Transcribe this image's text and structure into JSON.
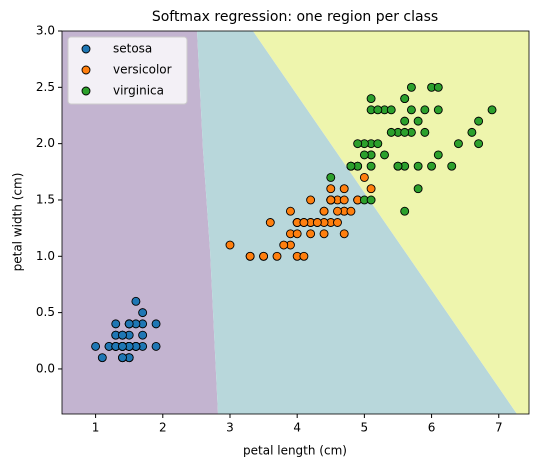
{
  "chart_data": {
    "type": "scatter",
    "title": "Softmax regression: one region per class",
    "x_label": "petal length (cm)",
    "y_label": "petal width (cm)",
    "xlim": [
      0.5,
      7.45
    ],
    "ylim": [
      -0.4,
      3.0
    ],
    "xticks": [
      1,
      2,
      3,
      4,
      5,
      6,
      7
    ],
    "yticks": [
      {
        "value": 0,
        "label": "0.0"
      },
      0.5,
      {
        "value": 1,
        "label": "1.0"
      },
      1.5,
      {
        "value": 2,
        "label": "2.0"
      },
      2.5,
      {
        "value": 3,
        "label": "3.0"
      }
    ],
    "legend": "upper left",
    "series": [
      {
        "name": "setosa",
        "color": "#1f77b4",
        "x": [
          1.4,
          1.4,
          1.3,
          1.5,
          1.4,
          1.7,
          1.4,
          1.5,
          1.4,
          1.5,
          1.5,
          1.6,
          1.4,
          1.1,
          1.2,
          1.5,
          1.3,
          1.4,
          1.7,
          1.5,
          1.7,
          1.5,
          1.0,
          1.7,
          1.9,
          1.6,
          1.6,
          1.5,
          1.4,
          1.6,
          1.6,
          1.5,
          1.5,
          1.4,
          1.5,
          1.2,
          1.3,
          1.4,
          1.3,
          1.5,
          1.3,
          1.3,
          1.3,
          1.6,
          1.9,
          1.4,
          1.6,
          1.4,
          1.5,
          1.4
        ],
        "values": [
          0.2,
          0.2,
          0.2,
          0.2,
          0.2,
          0.4,
          0.3,
          0.2,
          0.2,
          0.1,
          0.2,
          0.2,
          0.1,
          0.1,
          0.2,
          0.4,
          0.4,
          0.3,
          0.3,
          0.3,
          0.2,
          0.4,
          0.2,
          0.5,
          0.2,
          0.2,
          0.4,
          0.2,
          0.2,
          0.2,
          0.2,
          0.4,
          0.1,
          0.2,
          0.2,
          0.2,
          0.2,
          0.1,
          0.2,
          0.2,
          0.3,
          0.3,
          0.2,
          0.6,
          0.4,
          0.3,
          0.2,
          0.2,
          0.2,
          0.2
        ]
      },
      {
        "name": "versicolor",
        "color": "#ff7f0e",
        "x": [
          4.7,
          4.5,
          4.9,
          4.0,
          4.6,
          4.5,
          4.7,
          3.3,
          4.6,
          3.9,
          3.5,
          4.2,
          4.0,
          4.7,
          3.6,
          4.4,
          4.5,
          4.1,
          4.5,
          3.9,
          4.8,
          4.0,
          4.9,
          4.7,
          4.3,
          4.4,
          4.8,
          5.0,
          4.5,
          3.5,
          3.8,
          3.7,
          3.9,
          5.1,
          4.5,
          4.5,
          4.7,
          4.4,
          4.1,
          4.0,
          4.4,
          4.6,
          4.0,
          3.3,
          4.2,
          4.2,
          4.2,
          4.3,
          3.0,
          4.1
        ],
        "values": [
          1.4,
          1.5,
          1.5,
          1.3,
          1.5,
          1.3,
          1.6,
          1.0,
          1.3,
          1.4,
          1.0,
          1.5,
          1.0,
          1.4,
          1.3,
          1.4,
          1.5,
          1.0,
          1.5,
          1.1,
          1.8,
          1.3,
          1.5,
          1.2,
          1.3,
          1.4,
          1.4,
          1.7,
          1.5,
          1.0,
          1.1,
          1.0,
          1.2,
          1.6,
          1.5,
          1.6,
          1.5,
          1.3,
          1.3,
          1.3,
          1.2,
          1.4,
          1.2,
          1.0,
          1.3,
          1.2,
          1.3,
          1.3,
          1.1,
          1.3
        ]
      },
      {
        "name": "virginica",
        "color": "#2ca02c",
        "x": [
          6.0,
          5.1,
          5.9,
          5.6,
          5.8,
          6.6,
          4.5,
          6.3,
          5.8,
          6.1,
          5.1,
          5.3,
          5.5,
          5.0,
          5.1,
          5.3,
          5.5,
          6.7,
          6.9,
          5.0,
          5.7,
          4.9,
          6.7,
          4.9,
          5.7,
          6.0,
          4.8,
          4.9,
          5.6,
          5.8,
          6.1,
          6.4,
          5.6,
          5.1,
          5.6,
          6.1,
          5.6,
          5.5,
          4.8,
          5.4,
          5.6,
          5.1,
          5.1,
          5.9,
          5.7,
          5.2,
          5.0,
          5.2,
          5.4,
          5.1
        ],
        "values": [
          2.5,
          1.9,
          2.1,
          1.8,
          2.2,
          2.1,
          1.7,
          1.8,
          1.8,
          2.5,
          2.0,
          1.9,
          2.1,
          2.0,
          2.4,
          2.3,
          1.8,
          2.2,
          2.3,
          1.5,
          2.3,
          2.0,
          2.0,
          1.8,
          2.1,
          1.8,
          1.8,
          1.8,
          2.1,
          1.6,
          1.9,
          2.0,
          2.2,
          1.5,
          1.4,
          2.3,
          2.4,
          1.8,
          1.8,
          2.1,
          2.4,
          2.3,
          1.9,
          2.3,
          2.5,
          2.3,
          1.9,
          2.0,
          2.3,
          1.8
        ]
      }
    ]
  }
}
